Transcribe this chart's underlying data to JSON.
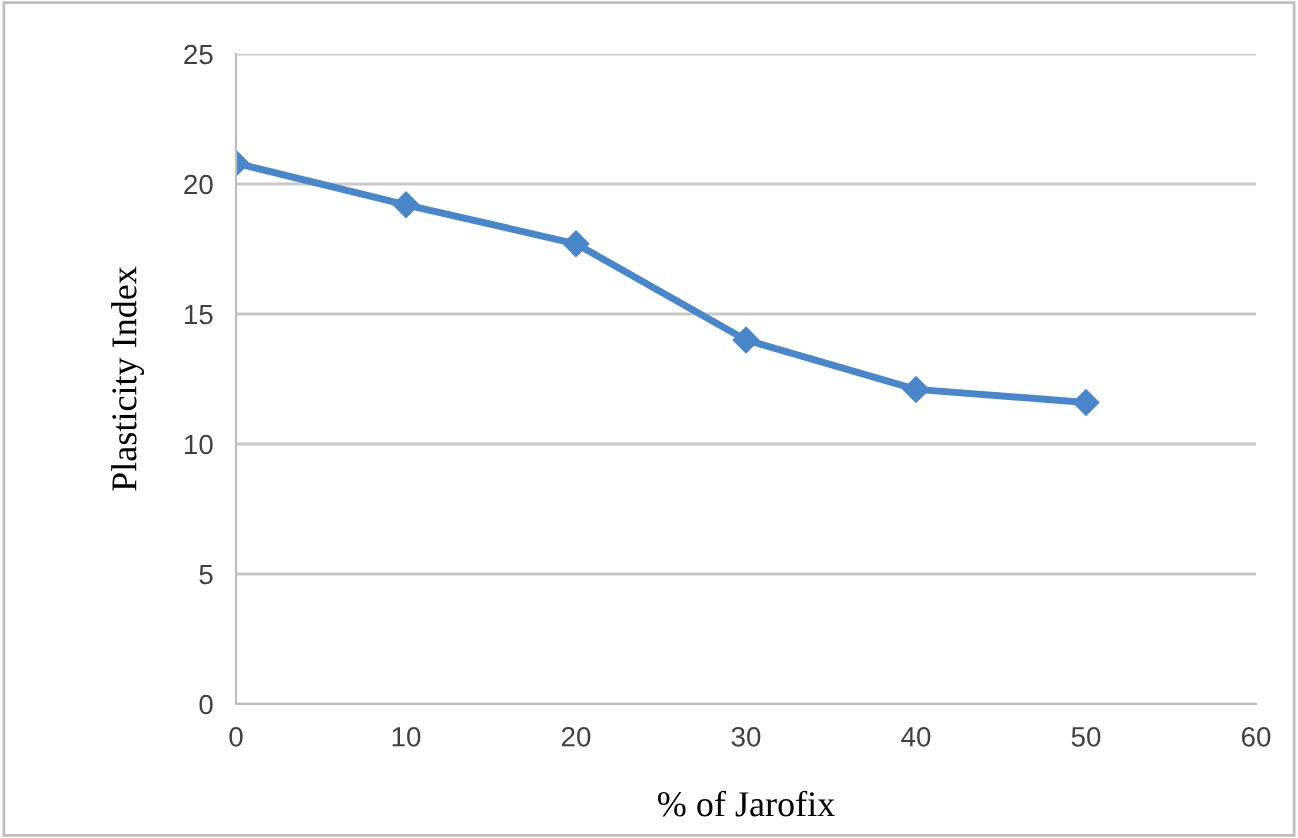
{
  "chart_data": {
    "type": "line",
    "xlabel": "% of Jarofix",
    "ylabel": "Plasticity Index",
    "x": [
      0,
      10,
      20,
      30,
      40,
      50
    ],
    "series": [
      {
        "color": "#4a86c8",
        "values": [
          20.8,
          19.2,
          17.7,
          14.0,
          12.1,
          11.6
        ]
      }
    ],
    "xlim": [
      0,
      60
    ],
    "xticks": [
      0,
      10,
      20,
      30,
      40,
      50,
      60
    ],
    "ylim": [
      0,
      25
    ],
    "yticks": [
      0,
      5,
      10,
      15,
      20,
      25
    ],
    "grid": "y",
    "marker": "diamond",
    "line_style": "solid",
    "legend": false
  }
}
